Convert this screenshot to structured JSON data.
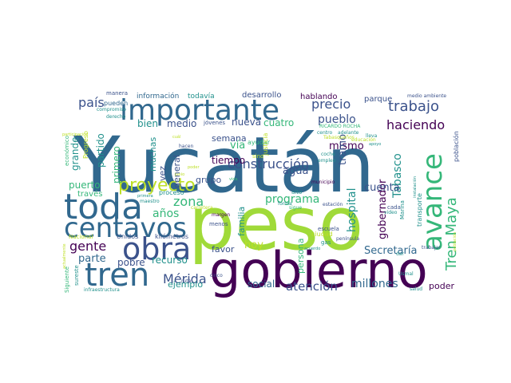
{
  "palette": {
    "dark_purple": "#440154",
    "indigo": "#3b528b",
    "slate_blue": "#31688e",
    "teal": "#21918c",
    "green": "#35b779",
    "lime": "#a0da39",
    "yellow_green": "#bddf26"
  },
  "words": [
    {
      "text": "Yucatán",
      "color": "slate_blue"
    },
    {
      "text": "peso",
      "color": "lime"
    },
    {
      "text": "gobierno",
      "color": "dark_purple"
    },
    {
      "text": "importante",
      "color": "slate_blue"
    },
    {
      "text": "toda",
      "color": "slate_blue"
    },
    {
      "text": "centavos",
      "color": "slate_blue"
    },
    {
      "text": "obra",
      "color": "indigo"
    },
    {
      "text": "tren",
      "color": "slate_blue"
    },
    {
      "text": "avance",
      "color": "green"
    },
    {
      "text": "proyecto",
      "color": "yellow_green"
    },
    {
      "text": "trabajo",
      "color": "indigo"
    },
    {
      "text": "Tren Maya",
      "color": "green"
    },
    {
      "text": "precio",
      "color": "indigo"
    },
    {
      "text": "país",
      "color": "indigo"
    },
    {
      "text": "construcción",
      "color": "indigo"
    },
    {
      "text": "Mérida",
      "color": "indigo"
    },
    {
      "text": "gente",
      "color": "dark_purple"
    },
    {
      "text": "zona",
      "color": "green"
    },
    {
      "text": "años",
      "color": "green"
    },
    {
      "text": "haciendo",
      "color": "dark_purple"
    },
    {
      "text": "pueblo",
      "color": "indigo"
    },
    {
      "text": "atención",
      "color": "indigo"
    },
    {
      "text": "millones",
      "color": "slate_blue"
    },
    {
      "text": "programa",
      "color": "green"
    },
    {
      "text": "Secretaría",
      "color": "slate_blue"
    },
    {
      "text": "Tabasco",
      "color": "teal"
    },
    {
      "text": "hospital",
      "color": "teal"
    },
    {
      "text": "gobernador",
      "color": "dark_purple"
    },
    {
      "text": "cuenta",
      "color": "indigo"
    },
    {
      "text": "mismo",
      "color": "dark_purple"
    },
    {
      "text": "tramo",
      "color": "indigo"
    },
    {
      "text": "agua",
      "color": "indigo"
    },
    {
      "text": "nueva",
      "color": "indigo"
    },
    {
      "text": "cuatro",
      "color": "green"
    },
    {
      "text": "vía",
      "color": "green"
    },
    {
      "text": "tiempo",
      "color": "dark_purple"
    },
    {
      "text": "hoy",
      "color": "yellow_green"
    },
    {
      "text": "favor",
      "color": "indigo"
    },
    {
      "text": "parte",
      "color": "slate_blue"
    },
    {
      "text": "recurso",
      "color": "teal"
    },
    {
      "text": "pobre",
      "color": "indigo"
    },
    {
      "text": "ejemplo",
      "color": "teal"
    },
    {
      "text": "social",
      "color": "slate_blue"
    },
    {
      "text": "poder",
      "color": "dark_purple"
    },
    {
      "text": "puerto",
      "color": "green"
    },
    {
      "text": "bien",
      "color": "teal"
    },
    {
      "text": "medio",
      "color": "indigo"
    },
    {
      "text": "grande",
      "color": "teal"
    },
    {
      "text": "partido",
      "color": "teal"
    },
    {
      "text": "primero",
      "color": "green"
    },
    {
      "text": "muchas",
      "color": "teal"
    },
    {
      "text": "vez",
      "color": "indigo"
    },
    {
      "text": "general",
      "color": "indigo"
    },
    {
      "text": "semana",
      "color": "indigo"
    },
    {
      "text": "grupo",
      "color": "indigo"
    },
    {
      "text": "familia",
      "color": "teal"
    },
    {
      "text": "persona",
      "color": "green"
    },
    {
      "text": "desarrollo",
      "color": "indigo"
    },
    {
      "text": "hablando",
      "color": "dark_purple"
    },
    {
      "text": "parque",
      "color": "indigo"
    },
    {
      "text": "información",
      "color": "slate_blue"
    },
    {
      "text": "todavía",
      "color": "teal"
    },
    {
      "text": "manera",
      "color": "indigo"
    },
    {
      "text": "pueden",
      "color": "slate_blue"
    },
    {
      "text": "compromiso",
      "color": "teal"
    },
    {
      "text": "derecho",
      "color": "teal"
    },
    {
      "text": "jóvenes",
      "color": "indigo"
    },
    {
      "text": "económico",
      "color": "green"
    },
    {
      "text": "Progreso",
      "color": "yellow_green"
    },
    {
      "text": "ayudar",
      "color": "green"
    },
    {
      "text": "justicia",
      "color": "yellow_green"
    },
    {
      "text": "sino",
      "color": "yellow_green"
    },
    {
      "text": "hacen",
      "color": "indigo"
    },
    {
      "text": "junio",
      "color": "yellow_green"
    },
    {
      "text": "través",
      "color": "green"
    },
    {
      "text": "proceso",
      "color": "teal"
    },
    {
      "text": "alto",
      "color": "teal"
    },
    {
      "text": "municipio",
      "color": "dark_purple"
    },
    {
      "text": "estación",
      "color": "indigo"
    },
    {
      "text": "kilómetros",
      "color": "indigo"
    },
    {
      "text": "Unidos",
      "color": "indigo"
    },
    {
      "text": "Nacional",
      "color": "yellow_green"
    },
    {
      "text": "menos",
      "color": "indigo"
    },
    {
      "text": "ciudad",
      "color": "yellow_green"
    },
    {
      "text": "escuela",
      "color": "indigo"
    },
    {
      "text": "gas",
      "color": "teal"
    },
    {
      "text": "margen",
      "color": "dark_purple"
    },
    {
      "text": "Siguiente",
      "color": "green"
    },
    {
      "text": "sureste",
      "color": "teal"
    },
    {
      "text": "infraestructura",
      "color": "teal"
    },
    {
      "text": "cinco",
      "color": "indigo"
    },
    {
      "text": "ruta",
      "color": "indigo"
    },
    {
      "text": "salud",
      "color": "teal"
    },
    {
      "text": "Usmal",
      "color": "teal"
    },
    {
      "text": "Marina",
      "color": "teal"
    },
    {
      "text": "península",
      "color": "indigo"
    },
    {
      "text": "trabajar",
      "color": "indigo"
    },
    {
      "text": "transporte",
      "color": "teal"
    },
    {
      "text": "población",
      "color": "indigo"
    },
    {
      "text": "medio ambiente",
      "color": "indigo"
    },
    {
      "text": "RICARDO ROCHA",
      "color": "green"
    },
    {
      "text": "centro",
      "color": "teal"
    },
    {
      "text": "adelante",
      "color": "teal"
    },
    {
      "text": "lleva",
      "color": "teal"
    },
    {
      "text": "apoyo",
      "color": "teal"
    },
    {
      "text": "cada",
      "color": "indigo"
    },
    {
      "text": "coche",
      "color": "teal"
    },
    {
      "text": "empleo",
      "color": "teal"
    },
    {
      "text": "forma",
      "color": "teal"
    },
    {
      "text": "sigue",
      "color": "green"
    },
    {
      "text": "vida",
      "color": "green"
    },
    {
      "text": "Tabasqueños",
      "color": "yellow_green"
    },
    {
      "text": "educación",
      "color": "yellow_green"
    },
    {
      "text": "cuál",
      "color": "yellow_green"
    },
    {
      "text": "poder",
      "color": "yellow_green"
    },
    {
      "text": "maestro",
      "color": "teal"
    },
    {
      "text": "primera",
      "color": "teal"
    },
    {
      "text": "video",
      "color": "teal"
    },
    {
      "text": "dar",
      "color": "teal"
    },
    {
      "text": "acuerdo",
      "color": "teal"
    },
    {
      "text": "carretera",
      "color": "yellow_green"
    },
    {
      "text": "instalación",
      "color": "teal"
    },
    {
      "text": "población",
      "color": "yellow_green"
    },
    {
      "text": "actualmente",
      "color": "yellow_green"
    },
    {
      "text": "participación",
      "color": "yellow_green"
    }
  ]
}
